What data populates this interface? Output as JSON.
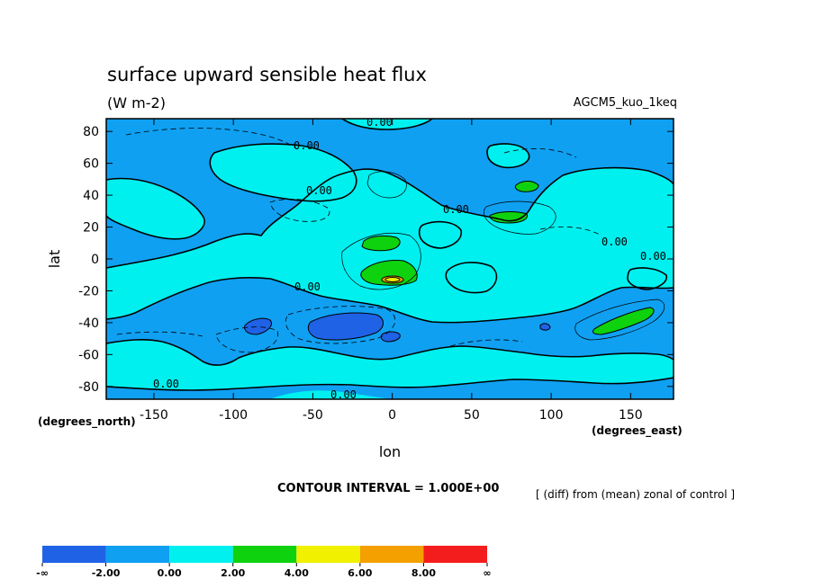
{
  "chart_data": {
    "type": "contour map",
    "title": "surface upward sensible heat flux",
    "units": "(W m-2)",
    "model": "AGCM5_kuo_1keq",
    "description_label": "[ (diff) from (mean) zonal of control ]",
    "xlabel": "lon",
    "ylabel": "lat",
    "x_units": "(degrees_east)",
    "y_units": "(degrees_north)",
    "xlim": [
      -180,
      177
    ],
    "ylim": [
      -88,
      88
    ],
    "x_ticks": [
      -150,
      -100,
      -50,
      0,
      50,
      100,
      150
    ],
    "y_ticks": [
      80,
      60,
      40,
      20,
      0,
      -20,
      -40,
      -60,
      -80
    ],
    "contour_interval_label": "CONTOUR INTERVAL = 1.000E+00",
    "contour_labels": [
      "0.00",
      "0.00",
      "0.00",
      "0.00",
      "0.00",
      "0.00",
      "0.00",
      "0.00",
      "0.00"
    ],
    "colorbar": {
      "labels": [
        "-∞",
        "-2.00",
        "0.00",
        "2.00",
        "4.00",
        "6.00",
        "8.00",
        "∞"
      ],
      "colors": [
        "#1f62e6",
        "#0fa0f2",
        "#00f0f0",
        "#0fd20f",
        "#f0f000",
        "#f4a000",
        "#f41d1d"
      ]
    },
    "regions": [
      {
        "level": "<-2",
        "lon": [
          -85,
          -75
        ],
        "lat": [
          -46,
          -38
        ]
      },
      {
        "level": "<-2",
        "lon": [
          -50,
          -5
        ],
        "lat": [
          -48,
          -35
        ]
      },
      {
        "level": "<-2",
        "lon": [
          -5,
          3
        ],
        "lat": [
          -52,
          -46
        ]
      },
      {
        "level": "2-4",
        "lon": [
          -18,
          8
        ],
        "lat": [
          10,
          18
        ]
      },
      {
        "level": "2-4",
        "lon": [
          -12,
          15
        ],
        "lat": [
          -20,
          -5
        ]
      },
      {
        "level": "2-4",
        "lon": [
          70,
          90
        ],
        "lat": [
          40,
          48
        ]
      },
      {
        "level": "2-4",
        "lon": [
          60,
          82
        ],
        "lat": [
          21,
          28
        ]
      },
      {
        "level": "2-4",
        "lon": [
          128,
          162
        ],
        "lat": [
          -48,
          -30
        ]
      },
      {
        "level": "4-8",
        "lon": [
          -4,
          6
        ],
        "lat": [
          -15,
          -10
        ]
      }
    ]
  }
}
